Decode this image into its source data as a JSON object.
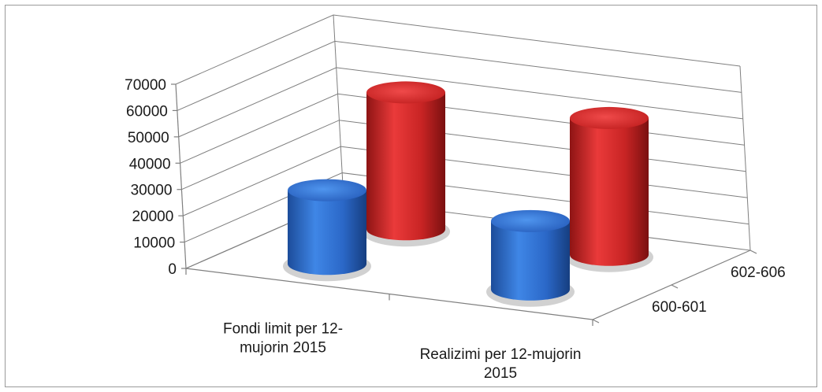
{
  "chart_data": {
    "type": "bar",
    "subtype": "3d-cylinder",
    "title": "",
    "categories": [
      "Fondi limit  per 12-mujorin 2015",
      "Realizimi per 12-mujorin 2015"
    ],
    "series": [
      {
        "name": "600-601",
        "values": [
          28000,
          26000
        ],
        "color": "#2f6fcf"
      },
      {
        "name": "602-606",
        "values": [
          52000,
          52000
        ],
        "color": "#cc2222"
      }
    ],
    "ylim": [
      0,
      70000
    ],
    "yticks": [
      "0",
      "10000",
      "20000",
      "30000",
      "40000",
      "50000",
      "60000",
      "70000"
    ],
    "grid": true,
    "legend": "none",
    "series_axis_labels": [
      "600-601",
      "602-606"
    ]
  }
}
